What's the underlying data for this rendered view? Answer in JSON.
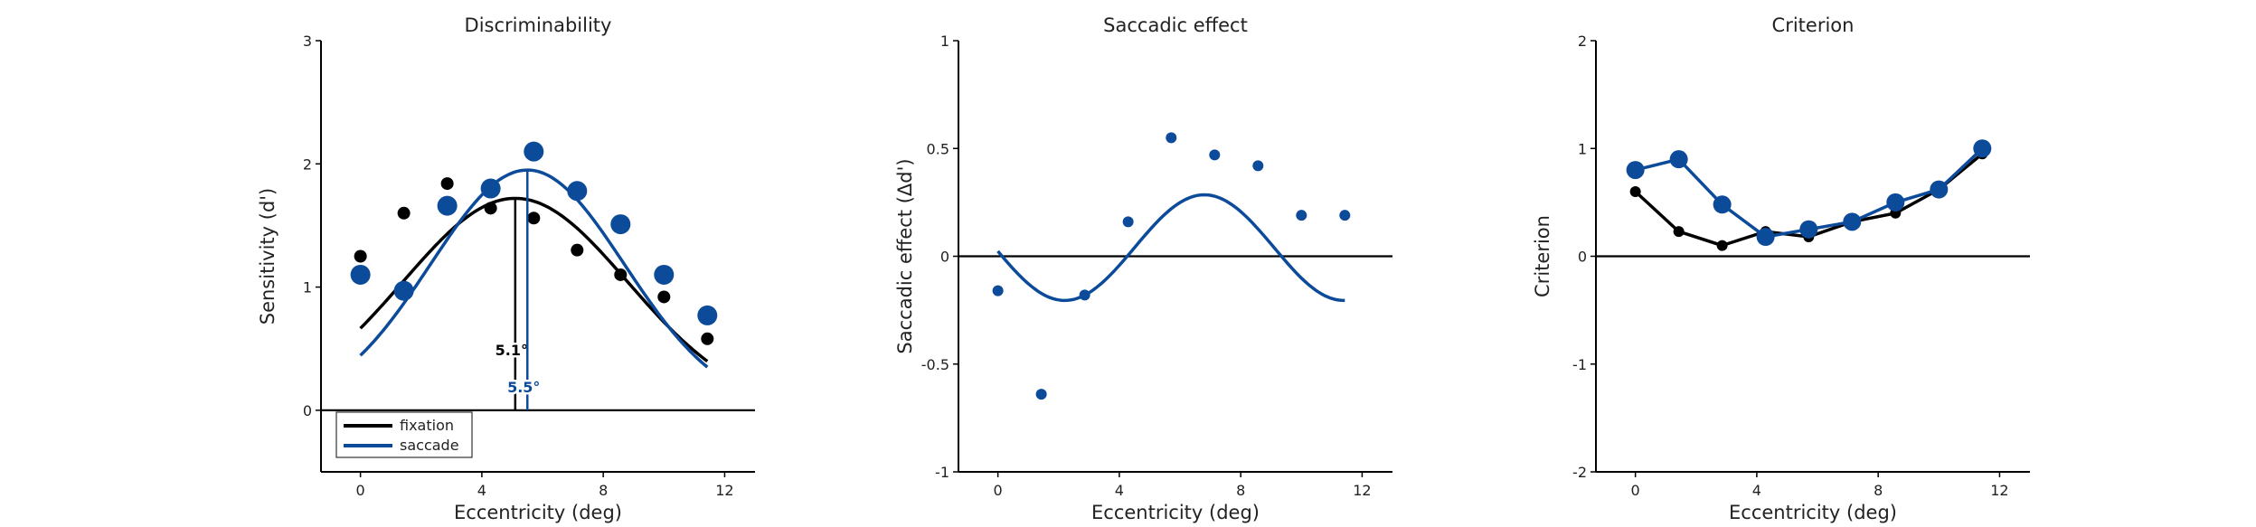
{
  "colors": {
    "fixation": "#000000",
    "saccade": "#0c4a9a",
    "axis": "#000000"
  },
  "chart_data": [
    {
      "type": "scatter",
      "title": "Discriminability",
      "xlabel": "Eccentricity (deg)",
      "ylabel": "Sensitivity (d')",
      "xlim": [
        -1.3,
        13
      ],
      "ylim": [
        -0.5,
        3
      ],
      "xticks": [
        0,
        4,
        8,
        12
      ],
      "yticks": [
        0,
        1,
        2,
        3
      ],
      "zero_line": true,
      "legend": {
        "position": "bottom-left",
        "entries": [
          "fixation",
          "saccade"
        ]
      },
      "series": [
        {
          "name": "fixation",
          "color": "#000000",
          "marker_size": 7,
          "x": [
            0,
            1.43,
            2.86,
            4.29,
            5.71,
            7.14,
            8.57,
            10,
            11.43
          ],
          "y": [
            1.25,
            1.6,
            1.84,
            1.64,
            1.56,
            1.3,
            1.1,
            0.92,
            0.58
          ],
          "fit": {
            "center": 5.1,
            "amplitude": 1.72,
            "width": 3.7,
            "x_range": [
              0,
              11.43
            ]
          }
        },
        {
          "name": "saccade",
          "color": "#0c4a9a",
          "marker_size": 11,
          "x": [
            0,
            1.43,
            2.86,
            4.29,
            5.71,
            7.14,
            8.57,
            10,
            11.43
          ],
          "y": [
            1.1,
            0.97,
            1.66,
            1.8,
            2.1,
            1.78,
            1.51,
            1.1,
            0.77
          ],
          "fit": {
            "center": 5.5,
            "amplitude": 1.95,
            "width": 3.2,
            "x_range": [
              0,
              11.43
            ]
          }
        }
      ],
      "peak_markers": [
        {
          "series": "fixation",
          "x": 5.1,
          "label": "5.1°"
        },
        {
          "series": "saccade",
          "x": 5.5,
          "label": "5.5°"
        }
      ]
    },
    {
      "type": "scatter",
      "title": "Saccadic effect",
      "xlabel": "Eccentricity (deg)",
      "ylabel": "Saccadic effect (Δd')",
      "xlim": [
        -1.3,
        13
      ],
      "ylim": [
        -1,
        1
      ],
      "xticks": [
        0,
        4,
        8,
        12
      ],
      "yticks": [
        -1,
        -0.5,
        0,
        0.5,
        1
      ],
      "ytick_labels": [
        "-1",
        "-0.5",
        "0",
        "0.5",
        "1"
      ],
      "zero_line": true,
      "series": [
        {
          "name": "",
          "color": "#0c4a9a",
          "marker_size": 6,
          "x": [
            0,
            1.43,
            2.86,
            4.29,
            5.71,
            7.14,
            8.57,
            10,
            11.43
          ],
          "y": [
            -0.16,
            -0.64,
            -0.18,
            0.16,
            0.55,
            0.47,
            0.42,
            0.19,
            0.19
          ],
          "fit": {
            "type": "sine",
            "offset": 0.04,
            "amplitude": 0.245,
            "period": 9.2,
            "peak_x": 6.8,
            "x_range": [
              0,
              11.43
            ]
          }
        }
      ]
    },
    {
      "type": "line",
      "title": "Criterion",
      "xlabel": "Eccentricity (deg)",
      "ylabel": "Criterion",
      "xlim": [
        -1.3,
        13
      ],
      "ylim": [
        -2,
        2
      ],
      "xticks": [
        0,
        4,
        8,
        12
      ],
      "yticks": [
        -2,
        -1,
        0,
        1,
        2
      ],
      "zero_line": true,
      "series": [
        {
          "name": "fixation",
          "color": "#000000",
          "marker_size": 6,
          "x": [
            0,
            1.43,
            2.86,
            4.29,
            5.71,
            7.14,
            8.57,
            10,
            11.43
          ],
          "y": [
            0.6,
            0.23,
            0.1,
            0.23,
            0.18,
            0.32,
            0.4,
            0.62,
            0.95
          ]
        },
        {
          "name": "saccade",
          "color": "#0c4a9a",
          "marker_size": 10,
          "x": [
            0,
            1.43,
            2.86,
            4.29,
            5.71,
            7.14,
            8.57,
            10,
            11.43
          ],
          "y": [
            0.8,
            0.9,
            0.48,
            0.18,
            0.25,
            0.32,
            0.5,
            0.62,
            1.0
          ]
        }
      ]
    }
  ]
}
